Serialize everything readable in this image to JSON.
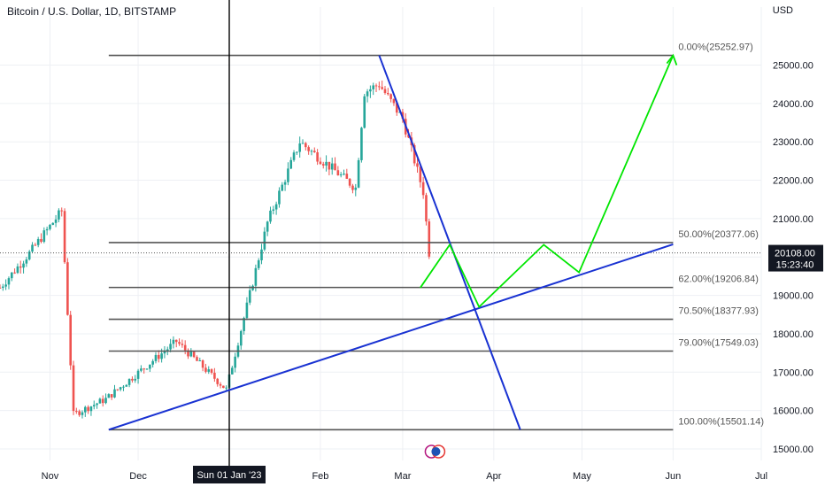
{
  "header": {
    "symbol_title": "Bitcoin / U.S. Dollar, 1D, BITSTAMP",
    "currency": "USD"
  },
  "crosshair": {
    "date_label": "Sun 01 Jan '23"
  },
  "last_price": {
    "price": "20108.00",
    "countdown": "15:23:40"
  },
  "colors": {
    "up": "#26a69a",
    "down": "#ef5350",
    "projection": "#00e600",
    "trendline": "#1932d2",
    "fib": "#555555"
  },
  "chart_data": {
    "type": "candlestick",
    "x_axis_labels": [
      "Nov",
      "Dec",
      "Jan",
      "Feb",
      "Mar",
      "Apr",
      "May",
      "Jun",
      "Jul"
    ],
    "y_ticks": [
      "15000.00",
      "16000.00",
      "17000.00",
      "18000.00",
      "19000.00",
      "20000.00",
      "21000.00",
      "22000.00",
      "23000.00",
      "24000.00",
      "25000.00"
    ],
    "ylim": [
      14700,
      26050
    ],
    "fib_levels": [
      {
        "label": "0.00%(25252.97)",
        "price": 25252.97
      },
      {
        "label": "50.00%(20377.06)",
        "price": 20377.06
      },
      {
        "label": "62.00%(19206.84)",
        "price": 19206.84
      },
      {
        "label": "70.50%(18377.93)",
        "price": 18377.93
      },
      {
        "label": "79.00%(17549.03)",
        "price": 17549.03
      },
      {
        "label": "100.00%(15501.14)",
        "price": 15501.14
      }
    ],
    "candles_approx": [
      {
        "date": "2022-10-15",
        "close": 19200
      },
      {
        "date": "2022-10-25",
        "close": 20100
      },
      {
        "date": "2022-11-05",
        "close": 21200
      },
      {
        "date": "2022-11-09",
        "close": 15900
      },
      {
        "date": "2022-11-20",
        "close": 16300
      },
      {
        "date": "2022-12-14",
        "close": 17800
      },
      {
        "date": "2022-12-31",
        "close": 16550
      },
      {
        "date": "2023-01-14",
        "close": 20900
      },
      {
        "date": "2023-01-25",
        "close": 23000
      },
      {
        "date": "2023-02-13",
        "close": 21800
      },
      {
        "date": "2023-02-16",
        "close": 24300
      },
      {
        "date": "2023-02-21",
        "close": 24500
      },
      {
        "date": "2023-03-01",
        "close": 23600
      },
      {
        "date": "2023-03-08",
        "close": 21700
      },
      {
        "date": "2023-03-10",
        "close": 20108
      }
    ],
    "trend_lines": [
      {
        "from": {
          "date": "2022-11-21",
          "price": 15501
        },
        "to": {
          "date": "2023-06-01",
          "price": 20330
        }
      },
      {
        "from": {
          "date": "2023-02-21",
          "price": 25253
        },
        "to": {
          "date": "2023-04-10",
          "price": 15501
        }
      }
    ],
    "projection_path": [
      {
        "date": "2023-03-07",
        "price": 19200
      },
      {
        "date": "2023-03-17",
        "price": 20320
      },
      {
        "date": "2023-03-27",
        "price": 18700
      },
      {
        "date": "2023-04-18",
        "price": 20320
      },
      {
        "date": "2023-04-30",
        "price": 19600
      },
      {
        "date": "2023-06-01",
        "price": 25252
      }
    ]
  }
}
